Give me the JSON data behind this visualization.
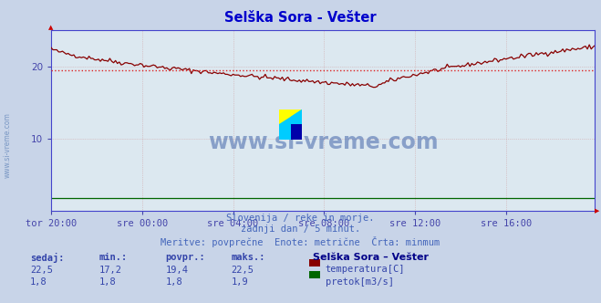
{
  "title": "Selška Sora - Vešter",
  "bg_color": "#c8d4e8",
  "plot_bg_color": "#dce8f0",
  "title_color": "#0000cc",
  "grid_color": "#cc8888",
  "axis_color": "#4444cc",
  "axis_label_color": "#4444aa",
  "x_tick_labels": [
    "tor 20:00",
    "sre 00:00",
    "sre 04:00",
    "sre 08:00",
    "sre 12:00",
    "sre 16:00"
  ],
  "x_tick_positions": [
    0,
    48,
    96,
    144,
    192,
    240
  ],
  "ylim": [
    0,
    25
  ],
  "y_ticks": [
    10,
    20
  ],
  "n_points": 288,
  "avg_line_value": 19.4,
  "avg_line_color": "#dd2222",
  "temp_color": "#880000",
  "flow_color": "#006600",
  "watermark_text": "www.si-vreme.com",
  "watermark_color": "#4466aa",
  "watermark_alpha": 0.55,
  "subtitle1": "Slovenija / reke in morje.",
  "subtitle2": "zadnji dan / 5 minut.",
  "subtitle3": "Meritve: povprečne  Enote: metrične  Črta: minmum",
  "subtitle_color": "#4466bb",
  "legend_title": "Selška Sora – Vešter",
  "legend_title_color": "#000088",
  "table_headers": [
    "sedaj:",
    "min.:",
    "povpr.:",
    "maks.:"
  ],
  "table_row1": [
    "22,5",
    "17,2",
    "19,4",
    "22,5"
  ],
  "table_row2": [
    "1,8",
    "1,8",
    "1,8",
    "1,9"
  ],
  "table_color": "#3344aa",
  "logo_colors": [
    "#ffff00",
    "#00ccff",
    "#0000aa"
  ],
  "left_watermark": "www.si-vreme.com",
  "left_watermark_color": "#6688bb"
}
